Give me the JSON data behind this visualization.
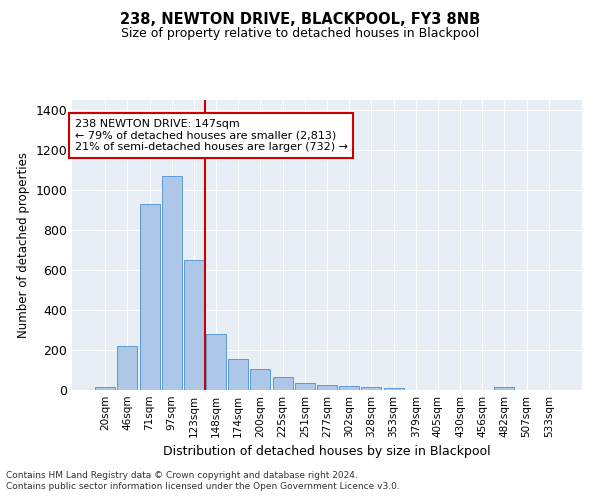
{
  "title1": "238, NEWTON DRIVE, BLACKPOOL, FY3 8NB",
  "title2": "Size of property relative to detached houses in Blackpool",
  "xlabel": "Distribution of detached houses by size in Blackpool",
  "ylabel": "Number of detached properties",
  "categories": [
    "20sqm",
    "46sqm",
    "71sqm",
    "97sqm",
    "123sqm",
    "148sqm",
    "174sqm",
    "200sqm",
    "225sqm",
    "251sqm",
    "277sqm",
    "302sqm",
    "328sqm",
    "353sqm",
    "379sqm",
    "405sqm",
    "430sqm",
    "456sqm",
    "482sqm",
    "507sqm",
    "533sqm"
  ],
  "values": [
    15,
    220,
    930,
    1070,
    650,
    280,
    155,
    105,
    65,
    35,
    25,
    20,
    15,
    12,
    0,
    0,
    0,
    0,
    15,
    0,
    0
  ],
  "bar_color": "#aec6e8",
  "bar_edge_color": "#5b9bd5",
  "vline_x": 4.5,
  "annotation_text": "238 NEWTON DRIVE: 147sqm\n← 79% of detached houses are smaller (2,813)\n21% of semi-detached houses are larger (732) →",
  "annotation_box_color": "#ffffff",
  "annotation_box_edge_color": "#cc0000",
  "vline_color": "#cc0000",
  "ylim": [
    0,
    1450
  ],
  "yticks": [
    0,
    200,
    400,
    600,
    800,
    1000,
    1200,
    1400
  ],
  "bg_color": "#e8eef5",
  "footer1": "Contains HM Land Registry data © Crown copyright and database right 2024.",
  "footer2": "Contains public sector information licensed under the Open Government Licence v3.0."
}
